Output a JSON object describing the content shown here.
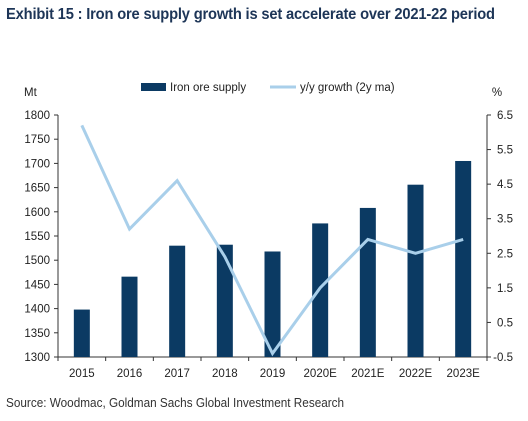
{
  "title": "Exhibit 15 : Iron ore supply growth is set accelerate over 2021-22 period",
  "source": "Source: Woodmac, Goldman Sachs Global Investment Research",
  "chart_data": {
    "type": "bar+line",
    "categories": [
      "2015",
      "2016",
      "2017",
      "2018",
      "2019",
      "2020E",
      "2021E",
      "2022E",
      "2023E"
    ],
    "series": [
      {
        "name": "Iron ore supply",
        "type": "bar",
        "axis": "left",
        "values": [
          1398,
          1466,
          1530,
          1532,
          1518,
          1576,
          1608,
          1656,
          1705
        ]
      },
      {
        "name": "y/y growth (2y ma)",
        "type": "line",
        "axis": "right",
        "values": [
          6.2,
          3.2,
          4.6,
          2.4,
          -0.4,
          1.5,
          2.9,
          2.5,
          2.9
        ]
      }
    ],
    "ylabel": "Mt",
    "y2label": "%",
    "ylim": [
      1300,
      1800
    ],
    "yticks": [
      "1300",
      "1350",
      "1400",
      "1450",
      "1500",
      "1550",
      "1600",
      "1650",
      "1700",
      "1750",
      "1800"
    ],
    "y2lim": [
      -0.5,
      6.5
    ],
    "y2ticks": [
      "-0.5",
      "0.5",
      "1.5",
      "2.5",
      "3.5",
      "4.5",
      "5.5",
      "6.5"
    ],
    "legend_position": "top",
    "colors": {
      "bar": "#0b3a63",
      "line": "#a9cfea",
      "title": "#1d3557"
    }
  }
}
